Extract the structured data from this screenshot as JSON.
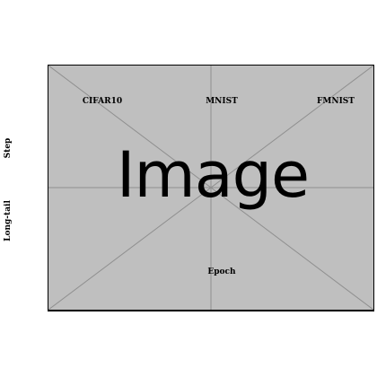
{
  "placeholder": {
    "word": "Image",
    "fill_color": "#bfbfbf",
    "line_color": "#8f8f8f",
    "border_color": "#000000"
  },
  "columns": [
    "CIFAR10",
    "MNIST",
    "FMNIST"
  ],
  "rows": [
    "Step",
    "Long-tail"
  ],
  "x_axis_label": "Epoch"
}
